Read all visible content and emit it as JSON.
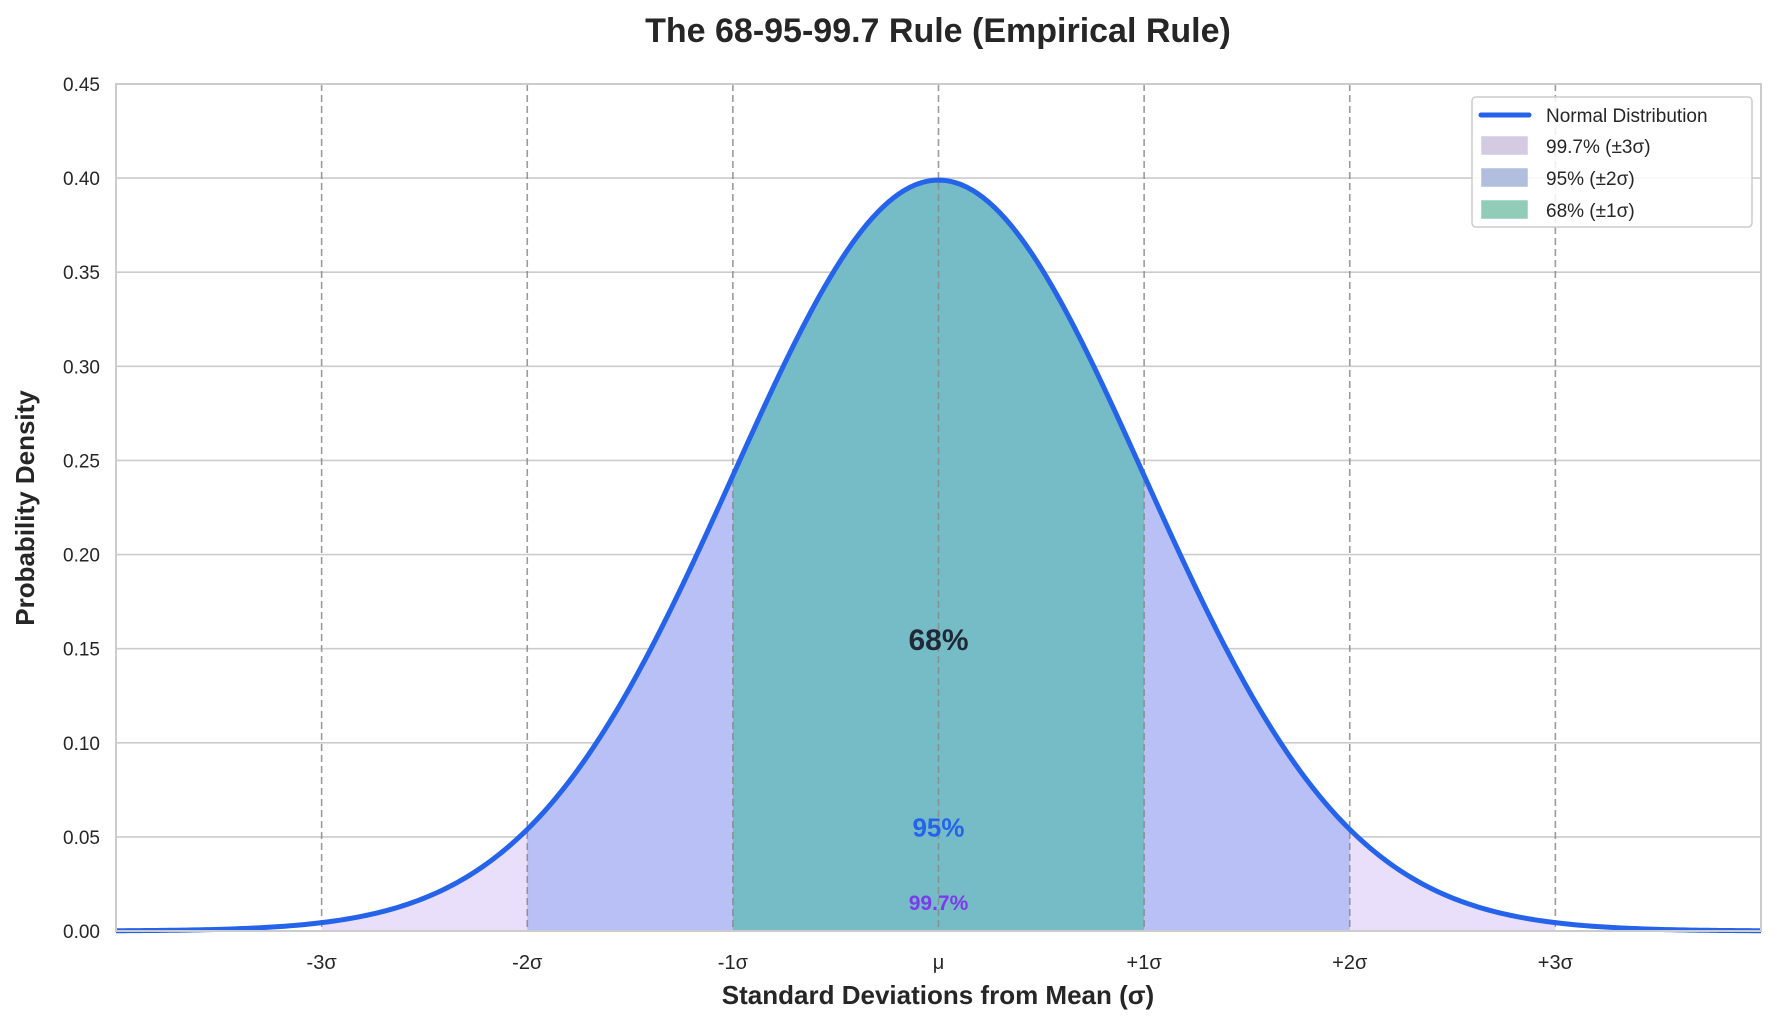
{
  "chart_data": {
    "type": "area",
    "title": "The 68-95-99.7 Rule (Empirical Rule)",
    "xlabel": "Standard Deviations from Mean (σ)",
    "ylabel": "Probability Density",
    "xlim": [
      -4,
      4
    ],
    "ylim": [
      0,
      0.45
    ],
    "grid": true,
    "x_ticks": [
      {
        "value": -3,
        "label": "-3σ"
      },
      {
        "value": -2,
        "label": "-2σ"
      },
      {
        "value": -1,
        "label": "-1σ"
      },
      {
        "value": 0,
        "label": "μ"
      },
      {
        "value": 1,
        "label": "+1σ"
      },
      {
        "value": 2,
        "label": "+2σ"
      },
      {
        "value": 3,
        "label": "+3σ"
      }
    ],
    "y_ticks": [
      "0.00",
      "0.05",
      "0.10",
      "0.15",
      "0.20",
      "0.25",
      "0.30",
      "0.35",
      "0.40",
      "0.45"
    ],
    "curve": {
      "name": "Normal Distribution",
      "function": "standard normal pdf",
      "mean": 0,
      "sd": 1,
      "color": "#2563eb"
    },
    "regions": [
      {
        "name": "99.7% (±3σ)",
        "range": [
          -3,
          3
        ],
        "color": "#e9dffb",
        "legend_color": "#ebe0fb"
      },
      {
        "name": "95% (±2σ)",
        "range": [
          -2,
          2
        ],
        "color": "#b8c0f5",
        "legend_color": "#c5d3f6"
      },
      {
        "name": "68% (±1σ)",
        "range": [
          -1,
          1
        ],
        "color": "#75bcc6",
        "legend_color": "#a0e3cc"
      }
    ],
    "annotations": [
      {
        "text": "68%",
        "x": 0,
        "y": 0.155,
        "color": "#1f2937"
      },
      {
        "text": "95%",
        "x": 0,
        "y": 0.055,
        "color": "#2563eb"
      },
      {
        "text": "99.7%",
        "x": 0,
        "y": 0.015,
        "color": "#7c3aed"
      }
    ],
    "vlines": [
      -3,
      -2,
      -1,
      0,
      1,
      2,
      3
    ],
    "legend_placement": "top-right"
  }
}
